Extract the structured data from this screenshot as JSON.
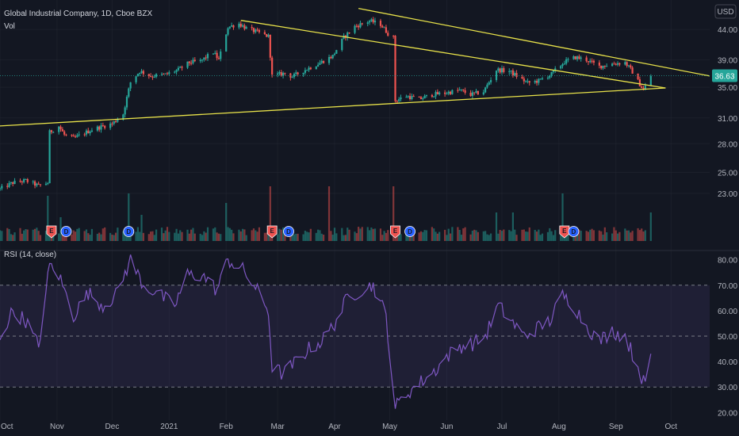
{
  "header": {
    "symbol": "Global Industrial Company, 1D, Cboe BZX",
    "volume_label": "Vol",
    "rsi_label": "RSI (14, close)",
    "currency": "USD"
  },
  "colors": {
    "background": "#131722",
    "up": "#26a69a",
    "down": "#ef5350",
    "trendline": "#e8e24a",
    "rsi_line": "#7e57c2",
    "rsi_band": "#7e57c2",
    "current_price_bg": "#26a69a",
    "grid": "#2a2e39"
  },
  "chart_data": [
    {
      "type": "candlestick",
      "title": "Global Industrial Company, 1D, Cboe BZX",
      "y_scale": "log",
      "ylim": [
        19.0,
        48.5
      ],
      "y_ticks": [
        "44.00",
        "39.00",
        "35.00",
        "31.00",
        "28.00",
        "25.00",
        "23.00"
      ],
      "y_tick_values": [
        44,
        39,
        35,
        31,
        28,
        25,
        23
      ],
      "x_ticks": [
        "Oct",
        "Nov",
        "Dec",
        "2021",
        "Feb",
        "Mar",
        "Apr",
        "May",
        "Jun",
        "Jul",
        "Aug",
        "Sep",
        "Oct"
      ],
      "x_range": [
        "2020-10-01",
        "2021-10-22"
      ],
      "current_price": "36.63",
      "price_path": [
        [
          "2020-10-01",
          23.4
        ],
        [
          "2020-10-08",
          24.0
        ],
        [
          "2020-10-15",
          24.2
        ],
        [
          "2020-10-22",
          23.7
        ],
        [
          "2020-10-27",
          24.0
        ],
        [
          "2020-10-28",
          29.3
        ],
        [
          "2020-11-02",
          30.0
        ],
        [
          "2020-11-05",
          29.0
        ],
        [
          "2020-11-10",
          28.6
        ],
        [
          "2020-11-20",
          29.6
        ],
        [
          "2020-11-26",
          30.0
        ],
        [
          "2020-12-01",
          30.3
        ],
        [
          "2020-12-07",
          31.5
        ],
        [
          "2020-12-11",
          35.7
        ],
        [
          "2020-12-16",
          37.3
        ],
        [
          "2020-12-22",
          36.6
        ],
        [
          "2020-12-30",
          36.8
        ],
        [
          "2021-01-06",
          37.5
        ],
        [
          "2021-01-12",
          38.6
        ],
        [
          "2021-01-18",
          38.8
        ],
        [
          "2021-01-25",
          40.2
        ],
        [
          "2021-01-28",
          39.0
        ],
        [
          "2021-02-02",
          44.4
        ],
        [
          "2021-02-08",
          45.0
        ],
        [
          "2021-02-12",
          44.2
        ],
        [
          "2021-02-18",
          43.5
        ],
        [
          "2021-02-24",
          42.8
        ],
        [
          "2021-02-26",
          36.6
        ],
        [
          "2021-03-05",
          37.0
        ],
        [
          "2021-03-09",
          36.5
        ],
        [
          "2021-03-16",
          37.5
        ],
        [
          "2021-03-23",
          38.4
        ],
        [
          "2021-03-31",
          39.6
        ],
        [
          "2021-04-06",
          42.6
        ],
        [
          "2021-04-12",
          44.5
        ],
        [
          "2021-04-20",
          45.5
        ],
        [
          "2021-04-26",
          44.9
        ],
        [
          "2021-04-30",
          43.3
        ],
        [
          "2021-05-03",
          42.6
        ],
        [
          "2021-05-04",
          33.2
        ],
        [
          "2021-05-10",
          33.8
        ],
        [
          "2021-05-17",
          33.4
        ],
        [
          "2021-05-24",
          34.0
        ],
        [
          "2021-05-31",
          34.2
        ],
        [
          "2021-06-08",
          34.6
        ],
        [
          "2021-06-14",
          34.0
        ],
        [
          "2021-06-21",
          34.4
        ],
        [
          "2021-06-28",
          37.5
        ],
        [
          "2021-07-05",
          37.3
        ],
        [
          "2021-07-09",
          36.6
        ],
        [
          "2021-07-15",
          35.6
        ],
        [
          "2021-07-21",
          35.9
        ],
        [
          "2021-07-28",
          36.9
        ],
        [
          "2021-08-04",
          38.7
        ],
        [
          "2021-08-10",
          39.4
        ],
        [
          "2021-08-16",
          39.0
        ],
        [
          "2021-08-23",
          38.0
        ],
        [
          "2021-08-30",
          38.4
        ],
        [
          "2021-09-06",
          38.6
        ],
        [
          "2021-09-10",
          37.2
        ],
        [
          "2021-09-14",
          35.4
        ],
        [
          "2021-09-16",
          34.6
        ],
        [
          "2021-09-20",
          36.6
        ]
      ],
      "trendlines": [
        {
          "name": "support",
          "from": [
            "2020-09-28",
            30.0
          ],
          "to": [
            "2021-09-28",
            34.9
          ]
        },
        {
          "name": "resistance-outer",
          "from": [
            "2021-04-14",
            47.8
          ],
          "to": [
            "2021-10-22",
            36.6
          ]
        },
        {
          "name": "resistance-inner",
          "from": [
            "2021-02-09",
            45.6
          ],
          "to": [
            "2021-09-28",
            34.9
          ]
        }
      ],
      "events": [
        {
          "date": "2020-10-29",
          "label": "E",
          "type": "earnings"
        },
        {
          "date": "2020-11-06",
          "label": "D",
          "type": "dividend"
        },
        {
          "date": "2020-12-10",
          "label": "D",
          "type": "dividend"
        },
        {
          "date": "2021-02-26",
          "label": "E",
          "type": "earnings"
        },
        {
          "date": "2021-03-07",
          "label": "D",
          "type": "dividend"
        },
        {
          "date": "2021-05-04",
          "label": "E",
          "type": "earnings"
        },
        {
          "date": "2021-05-12",
          "label": "D",
          "type": "dividend"
        },
        {
          "date": "2021-08-04",
          "label": "E",
          "type": "earnings"
        },
        {
          "date": "2021-08-09",
          "label": "D",
          "type": "dividend"
        }
      ]
    },
    {
      "type": "bar",
      "title": "Vol",
      "volume_spikes": [
        {
          "date": "2020-10-28",
          "level": 0.95,
          "direction": "up"
        },
        {
          "date": "2020-11-04",
          "level": 0.5,
          "direction": "up"
        },
        {
          "date": "2020-12-11",
          "level": 1.0,
          "direction": "up"
        },
        {
          "date": "2020-12-18",
          "level": 0.55,
          "direction": "up"
        },
        {
          "date": "2021-02-02",
          "level": 0.8,
          "direction": "up"
        },
        {
          "date": "2021-02-26",
          "level": 1.15,
          "direction": "down"
        },
        {
          "date": "2021-03-29",
          "level": 1.15,
          "direction": "down"
        },
        {
          "date": "2021-05-04",
          "level": 1.15,
          "direction": "down"
        },
        {
          "date": "2021-06-28",
          "level": 0.6,
          "direction": "up"
        },
        {
          "date": "2021-07-08",
          "level": 0.6,
          "direction": "up"
        },
        {
          "date": "2021-08-04",
          "level": 1.0,
          "direction": "up"
        },
        {
          "date": "2021-09-20",
          "level": 0.6,
          "direction": "up"
        }
      ]
    },
    {
      "type": "line",
      "title": "RSI (14, close)",
      "ylim": [
        17,
        83
      ],
      "y_ticks": [
        "80.00",
        "70.00",
        "60.00",
        "50.00",
        "40.00",
        "30.00",
        "20.00"
      ],
      "y_tick_values": [
        80,
        70,
        60,
        50,
        40,
        30,
        20
      ],
      "bands": [
        70,
        50,
        30
      ],
      "series": [
        {
          "values": [
            [
              "2020-10-01",
              50
            ],
            [
              "2020-10-08",
              60
            ],
            [
              "2020-10-15",
              56
            ],
            [
              "2020-10-22",
              46
            ],
            [
              "2020-10-28",
              78
            ],
            [
              "2020-11-02",
              74
            ],
            [
              "2020-11-10",
              58
            ],
            [
              "2020-11-18",
              67
            ],
            [
              "2020-11-26",
              62
            ],
            [
              "2020-12-03",
              66
            ],
            [
              "2020-12-11",
              80
            ],
            [
              "2020-12-18",
              70
            ],
            [
              "2020-12-25",
              67
            ],
            [
              "2021-01-04",
              62
            ],
            [
              "2021-01-11",
              74
            ],
            [
              "2021-01-19",
              74
            ],
            [
              "2021-01-27",
              68
            ],
            [
              "2021-02-02",
              80
            ],
            [
              "2021-02-10",
              76
            ],
            [
              "2021-02-17",
              69
            ],
            [
              "2021-02-24",
              60
            ],
            [
              "2021-02-26",
              38
            ],
            [
              "2021-03-04",
              35
            ],
            [
              "2021-03-11",
              40
            ],
            [
              "2021-03-18",
              45
            ],
            [
              "2021-03-25",
              48
            ],
            [
              "2021-04-01",
              55
            ],
            [
              "2021-04-08",
              65
            ],
            [
              "2021-04-15",
              68
            ],
            [
              "2021-04-22",
              70
            ],
            [
              "2021-04-29",
              58
            ],
            [
              "2021-05-04",
              22
            ],
            [
              "2021-05-11",
              28
            ],
            [
              "2021-05-18",
              32
            ],
            [
              "2021-05-25",
              36
            ],
            [
              "2021-06-01",
              42
            ],
            [
              "2021-06-08",
              46
            ],
            [
              "2021-06-15",
              47
            ],
            [
              "2021-06-22",
              50
            ],
            [
              "2021-06-29",
              62
            ],
            [
              "2021-07-06",
              56
            ],
            [
              "2021-07-13",
              50
            ],
            [
              "2021-07-20",
              53
            ],
            [
              "2021-07-27",
              56
            ],
            [
              "2021-08-03",
              66
            ],
            [
              "2021-08-09",
              62
            ],
            [
              "2021-08-16",
              54
            ],
            [
              "2021-08-23",
              48
            ],
            [
              "2021-08-30",
              52
            ],
            [
              "2021-09-06",
              50
            ],
            [
              "2021-09-13",
              38
            ],
            [
              "2021-09-17",
              30
            ],
            [
              "2021-09-21",
              46
            ]
          ]
        }
      ]
    }
  ]
}
